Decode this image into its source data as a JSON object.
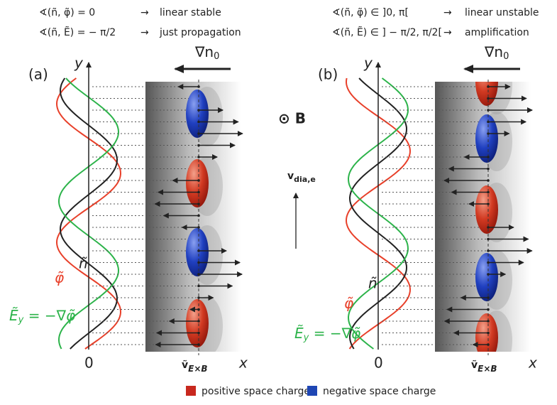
{
  "header": {
    "left": [
      {
        "expr": "∢(ñ, φ̃)  =  0",
        "arrow": "→",
        "result": "linear stable"
      },
      {
        "expr": "∢(ñ, Ẽ)  =  − π/2",
        "arrow": "→",
        "result": "just propagation"
      }
    ],
    "right": [
      {
        "expr": "∢(ñ, φ̃)  ∈  ]0, π[",
        "arrow": "→",
        "result": "linear unstable"
      },
      {
        "expr": "∢(ñ, Ẽ)  ∈  ] − π/2, π/2[",
        "arrow": "→",
        "result": "amplification"
      }
    ]
  },
  "panels": [
    {
      "label": "(a)",
      "y_axis": "y",
      "x_axis": "x",
      "origin": "0",
      "gradient": {
        "main": "∇n",
        "sub": "0"
      },
      "n_label": "ñ",
      "phi_label": "φ̃",
      "e_label": {
        "main": "Ẽ",
        "sub": "y",
        "rest": " = −∇φ̃"
      },
      "v_label": {
        "main": "ṽ",
        "sub": "E×B"
      }
    },
    {
      "label": "(b)",
      "y_axis": "y",
      "x_axis": "x",
      "origin": "0",
      "gradient": {
        "main": "∇n",
        "sub": "0"
      },
      "n_label": "ñ",
      "phi_label": "φ̃",
      "e_label": {
        "main": "Ẽ",
        "sub": "y",
        "rest": " = −∇φ̃"
      },
      "v_label": {
        "main": "ṽ",
        "sub": "E×B"
      }
    }
  ],
  "center": {
    "field": "⊙ B",
    "drift": {
      "main": "v",
      "sub": "dia,e"
    }
  },
  "legend": [
    {
      "label": "positive space charge",
      "color": "#c8281e"
    },
    {
      "label": "negative space charge",
      "color": "#1e46b4"
    }
  ]
}
